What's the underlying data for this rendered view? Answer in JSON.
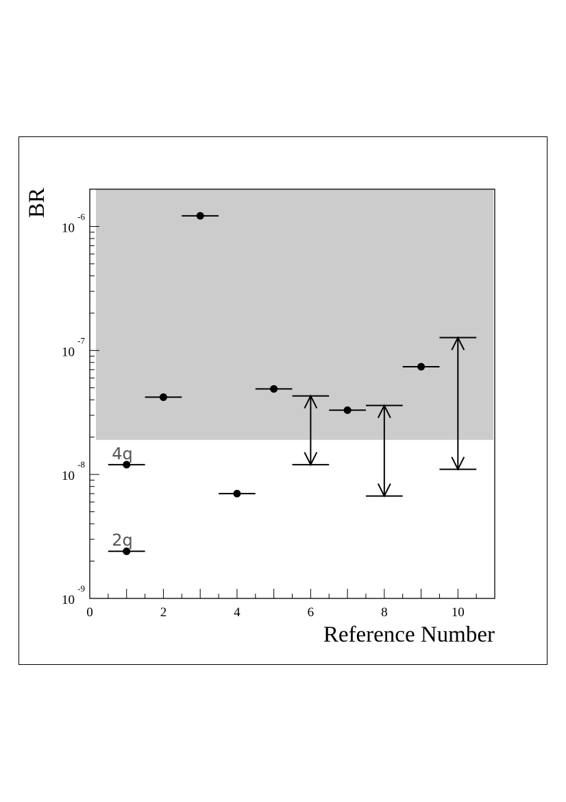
{
  "chart_data": {
    "type": "scatter",
    "xlabel": "Reference Number",
    "ylabel": "BR",
    "xlim": [
      0,
      11
    ],
    "ylim": [
      1e-09,
      2e-06
    ],
    "y_scale": "log",
    "x_ticks": [
      0,
      2,
      4,
      6,
      8,
      10
    ],
    "x_tick_labels": [
      "0",
      "2",
      "4",
      "6",
      "8",
      "10"
    ],
    "y_ticks": [
      {
        "value": 1e-09,
        "base": "10",
        "exp": "-9"
      },
      {
        "value": 1e-08,
        "base": "10",
        "exp": "-8"
      },
      {
        "value": 1e-07,
        "base": "10",
        "exp": "-7"
      },
      {
        "value": 1e-06,
        "base": "10",
        "exp": "-6"
      }
    ],
    "shaded_region": {
      "y_from": 1.9e-08,
      "y_to": 2e-06,
      "color": "#cccccc"
    },
    "x_half_width": 0.5,
    "points": [
      {
        "x": 1,
        "y": 1.2e-08,
        "label": "4q"
      },
      {
        "x": 1,
        "y": 2.4e-09,
        "label": "2q"
      },
      {
        "x": 2,
        "y": 4.2e-08
      },
      {
        "x": 3,
        "y": 1.22e-06
      },
      {
        "x": 4,
        "y": 7e-09
      },
      {
        "x": 5,
        "y": 4.9e-08
      },
      {
        "x": 7,
        "y": 3.3e-08
      },
      {
        "x": 9,
        "y": 7.4e-08
      }
    ],
    "ranges": [
      {
        "x": 6,
        "low": 1.2e-08,
        "high": 4.3e-08
      },
      {
        "x": 8,
        "low": 6.7e-09,
        "high": 3.6e-08
      },
      {
        "x": 10,
        "low": 1.1e-08,
        "high": 1.27e-07
      }
    ],
    "colors": {
      "marker": "#000000",
      "shade": "#cccccc",
      "label_text": "#555555"
    }
  }
}
